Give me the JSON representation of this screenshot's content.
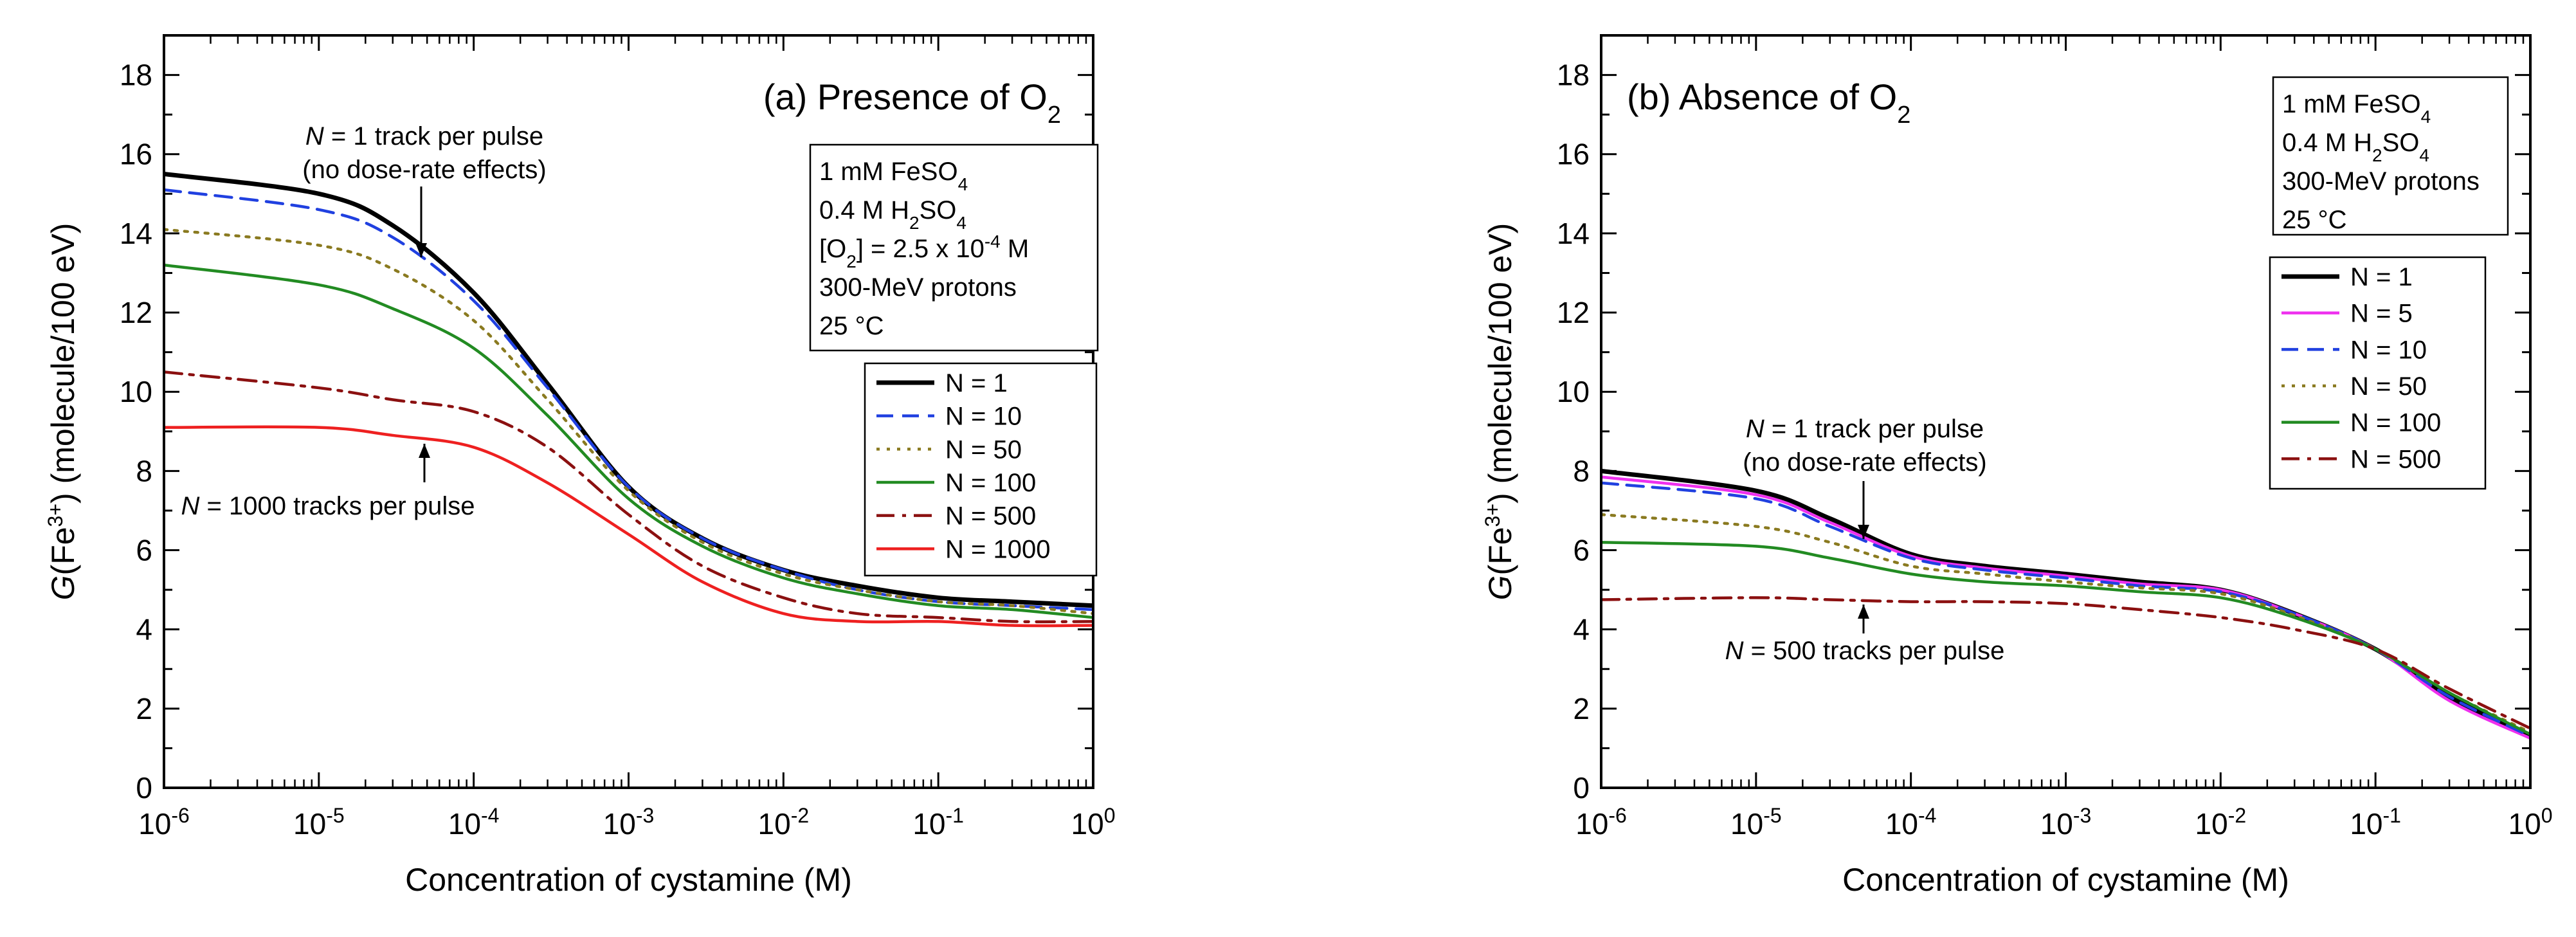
{
  "chart_data": [
    {
      "type": "line",
      "panel_label": "(a) Presence of O",
      "panel_label_sub": "2",
      "xlabel": "Concentration of cystamine (M)",
      "ylabel_prefix": "G",
      "ylabel_species": "(Fe",
      "ylabel_charge": "3+",
      "ylabel_suffix": ") (molecule/100 eV)",
      "x_scale": "log",
      "xlim": [
        1e-06,
        1
      ],
      "ylim": [
        0,
        19
      ],
      "x_ticks": [
        {
          "base": "10",
          "exp": "-6"
        },
        {
          "base": "10",
          "exp": "-5"
        },
        {
          "base": "10",
          "exp": "-4"
        },
        {
          "base": "10",
          "exp": "-3"
        },
        {
          "base": "10",
          "exp": "-2"
        },
        {
          "base": "10",
          "exp": "-1"
        },
        {
          "base": "10",
          "exp": "0"
        }
      ],
      "y_ticks": [
        "0",
        "2",
        "4",
        "6",
        "8",
        "10",
        "12",
        "14",
        "16",
        "18"
      ],
      "info_lines": [
        [
          {
            "t": "1 mM FeSO"
          },
          {
            "t": "4",
            "s": "sub"
          }
        ],
        [
          {
            "t": "0.4 M H"
          },
          {
            "t": "2",
            "s": "sub"
          },
          {
            "t": "SO"
          },
          {
            "t": "4",
            "s": "sub"
          }
        ],
        [
          {
            "t": "[O"
          },
          {
            "t": "2",
            "s": "sub"
          },
          {
            "t": "] = 2.5 x 10"
          },
          {
            "t": "-4",
            "s": "sup"
          },
          {
            "t": " M"
          }
        ],
        [
          {
            "t": "300-MeV protons"
          }
        ],
        [
          {
            "t": "25 °C"
          }
        ]
      ],
      "legend_position": "center-right",
      "series": [
        {
          "name": "N = 1",
          "color": "#000000",
          "dash": "solid",
          "x": [
            1e-06,
            1e-05,
            3e-05,
            0.0001,
            0.0003,
            0.001,
            0.003,
            0.01,
            0.03,
            0.1,
            0.3,
            1
          ],
          "y": [
            15.5,
            15.0,
            14.2,
            12.5,
            10.2,
            7.6,
            6.3,
            5.5,
            5.1,
            4.8,
            4.7,
            4.6
          ]
        },
        {
          "name": "N = 10",
          "color": "#2040e0",
          "dash": "dash",
          "x": [
            1e-06,
            1e-05,
            3e-05,
            0.0001,
            0.0003,
            0.001,
            0.003,
            0.01,
            0.03,
            0.1,
            0.3,
            1
          ],
          "y": [
            15.1,
            14.6,
            13.9,
            12.3,
            10.1,
            7.6,
            6.3,
            5.5,
            5.0,
            4.7,
            4.6,
            4.5
          ]
        },
        {
          "name": "N = 50",
          "color": "#8a7a20",
          "dash": "dot",
          "x": [
            1e-06,
            1e-05,
            3e-05,
            0.0001,
            0.0003,
            0.001,
            0.003,
            0.01,
            0.03,
            0.1,
            0.3,
            1
          ],
          "y": [
            14.1,
            13.7,
            13.1,
            11.8,
            9.8,
            7.5,
            6.2,
            5.4,
            5.0,
            4.7,
            4.6,
            4.4
          ]
        },
        {
          "name": "N = 100",
          "color": "#228b22",
          "dash": "solid",
          "x": [
            1e-06,
            1e-05,
            3e-05,
            0.0001,
            0.0003,
            0.001,
            0.003,
            0.01,
            0.03,
            0.1,
            0.3,
            1
          ],
          "y": [
            13.2,
            12.7,
            12.1,
            11.1,
            9.4,
            7.3,
            6.1,
            5.3,
            4.9,
            4.6,
            4.5,
            4.3
          ]
        },
        {
          "name": "N = 500",
          "color": "#8b1010",
          "dash": "dashdot",
          "x": [
            1e-06,
            1e-05,
            3e-05,
            0.0001,
            0.0003,
            0.001,
            0.003,
            0.01,
            0.03,
            0.1,
            0.3,
            1
          ],
          "y": [
            10.5,
            10.1,
            9.8,
            9.5,
            8.6,
            6.9,
            5.6,
            4.8,
            4.4,
            4.3,
            4.2,
            4.2
          ]
        },
        {
          "name": "N = 1000",
          "color": "#ee2020",
          "dash": "solid",
          "x": [
            1e-06,
            1e-05,
            3e-05,
            0.0001,
            0.0003,
            0.001,
            0.003,
            0.01,
            0.03,
            0.1,
            0.3,
            1
          ],
          "y": [
            9.1,
            9.1,
            8.9,
            8.6,
            7.7,
            6.4,
            5.2,
            4.4,
            4.2,
            4.2,
            4.1,
            4.1
          ]
        }
      ],
      "annotations": [
        {
          "italic": "N",
          "rest": " = 1 track per pulse",
          "line2": "(no dose-rate effects)"
        },
        {
          "italic": "N",
          "rest": " = 1000 tracks per pulse",
          "line2": ""
        }
      ]
    },
    {
      "type": "line",
      "panel_label": "(b) Absence of O",
      "panel_label_sub": "2",
      "xlabel": "Concentration of cystamine (M)",
      "ylabel_prefix": "G",
      "ylabel_species": "(Fe",
      "ylabel_charge": "3+",
      "ylabel_suffix": ") (molecule/100 eV)",
      "x_scale": "log",
      "xlim": [
        1e-06,
        1
      ],
      "ylim": [
        0,
        19
      ],
      "x_ticks": [
        {
          "base": "10",
          "exp": "-6"
        },
        {
          "base": "10",
          "exp": "-5"
        },
        {
          "base": "10",
          "exp": "-4"
        },
        {
          "base": "10",
          "exp": "-3"
        },
        {
          "base": "10",
          "exp": "-2"
        },
        {
          "base": "10",
          "exp": "-1"
        },
        {
          "base": "10",
          "exp": "0"
        }
      ],
      "y_ticks": [
        "0",
        "2",
        "4",
        "6",
        "8",
        "10",
        "12",
        "14",
        "16",
        "18"
      ],
      "info_lines": [
        [
          {
            "t": "1 mM FeSO"
          },
          {
            "t": "4",
            "s": "sub"
          }
        ],
        [
          {
            "t": "0.4 M H"
          },
          {
            "t": "2",
            "s": "sub"
          },
          {
            "t": "SO"
          },
          {
            "t": "4",
            "s": "sub"
          }
        ],
        [
          {
            "t": "300-MeV protons"
          }
        ],
        [
          {
            "t": "25 °C"
          }
        ]
      ],
      "legend_position": "center-right",
      "series": [
        {
          "name": "N = 1",
          "color": "#000000",
          "dash": "solid",
          "x": [
            1e-06,
            1e-05,
            3e-05,
            0.0001,
            0.0003,
            0.001,
            0.003,
            0.01,
            0.03,
            0.1,
            0.3,
            1
          ],
          "y": [
            8.0,
            7.5,
            6.8,
            5.9,
            5.6,
            5.4,
            5.2,
            5.0,
            4.4,
            3.5,
            2.3,
            1.3
          ]
        },
        {
          "name": "N = 5",
          "color": "#ee30ee",
          "dash": "solid",
          "x": [
            1e-06,
            1e-05,
            3e-05,
            0.0001,
            0.0003,
            0.001,
            0.003,
            0.01,
            0.03,
            0.1,
            0.3,
            1
          ],
          "y": [
            7.85,
            7.4,
            6.7,
            5.85,
            5.55,
            5.35,
            5.15,
            5.0,
            4.4,
            3.5,
            2.2,
            1.25
          ]
        },
        {
          "name": "N = 10",
          "color": "#2040e0",
          "dash": "dash",
          "x": [
            1e-06,
            1e-05,
            3e-05,
            0.0001,
            0.0003,
            0.001,
            0.003,
            0.01,
            0.03,
            0.1,
            0.3,
            1
          ],
          "y": [
            7.7,
            7.3,
            6.6,
            5.8,
            5.5,
            5.3,
            5.1,
            4.95,
            4.4,
            3.5,
            2.3,
            1.3
          ]
        },
        {
          "name": "N = 50",
          "color": "#8a7a20",
          "dash": "dot",
          "x": [
            1e-06,
            1e-05,
            3e-05,
            0.0001,
            0.0003,
            0.001,
            0.003,
            0.01,
            0.03,
            0.1,
            0.3,
            1
          ],
          "y": [
            6.9,
            6.6,
            6.2,
            5.6,
            5.4,
            5.2,
            5.05,
            4.9,
            4.35,
            3.5,
            2.4,
            1.4
          ]
        },
        {
          "name": "N = 100",
          "color": "#228b22",
          "dash": "solid",
          "x": [
            1e-06,
            1e-05,
            3e-05,
            0.0001,
            0.0003,
            0.001,
            0.003,
            0.01,
            0.03,
            0.1,
            0.3,
            1
          ],
          "y": [
            6.2,
            6.1,
            5.8,
            5.4,
            5.2,
            5.1,
            4.95,
            4.8,
            4.3,
            3.5,
            2.4,
            1.35
          ]
        },
        {
          "name": "N = 500",
          "color": "#8b1010",
          "dash": "dashdot",
          "x": [
            1e-06,
            1e-05,
            3e-05,
            0.0001,
            0.0003,
            0.001,
            0.003,
            0.01,
            0.03,
            0.1,
            0.3,
            1
          ],
          "y": [
            4.75,
            4.8,
            4.75,
            4.7,
            4.7,
            4.65,
            4.5,
            4.3,
            4.0,
            3.5,
            2.5,
            1.5
          ]
        }
      ],
      "annotations": [
        {
          "italic": "N",
          "rest": " = 1 track per pulse",
          "line2": "(no dose-rate effects)"
        },
        {
          "italic": "N",
          "rest": " = 500 tracks per pulse",
          "line2": ""
        }
      ]
    }
  ]
}
